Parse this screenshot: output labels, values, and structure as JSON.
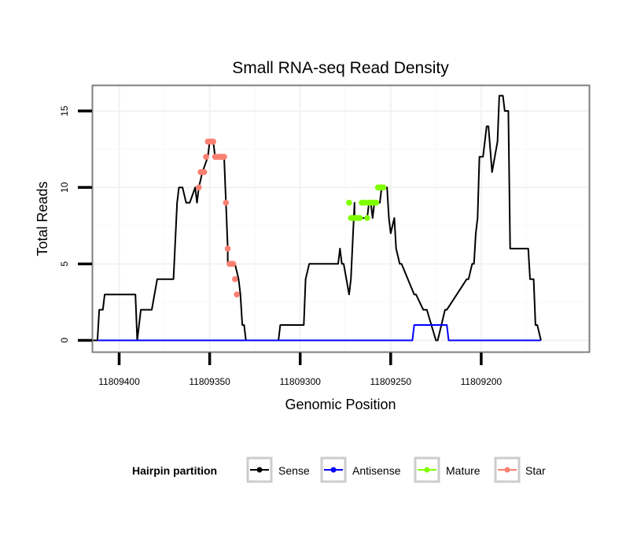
{
  "chart_data": {
    "type": "line",
    "title": "Small RNA-seq Read Density",
    "xlabel": "Genomic Position",
    "ylabel": "Total Reads",
    "x_reversed": true,
    "xlim": [
      11809415,
      11809140
    ],
    "ylim": [
      -0.8,
      16.7
    ],
    "x_ticks": [
      11809400,
      11809350,
      11809300,
      11809250,
      11809200
    ],
    "x_tick_labels": [
      "11809400",
      "11809350",
      "11809300",
      "11809250",
      "11809200"
    ],
    "y_ticks": [
      0,
      5,
      10,
      15
    ],
    "y_tick_labels": [
      "0",
      "5",
      "10",
      "15"
    ],
    "grid": true,
    "legend": {
      "title": "Hairpin partition",
      "position": "bottom",
      "entries": [
        {
          "name": "Sense",
          "color": "#000000"
        },
        {
          "name": "Antisense",
          "color": "#0000ff"
        },
        {
          "name": "Mature",
          "color": "#7fff00"
        },
        {
          "name": "Star",
          "color": "#fa8072"
        }
      ]
    },
    "series": [
      {
        "name": "Sense",
        "color": "#000000",
        "style": "line",
        "x": [
          11809415,
          11809412,
          11809411,
          11809409,
          11809408,
          11809391,
          11809390,
          11809389,
          11809388,
          11809382,
          11809379,
          11809370,
          11809368,
          11809367,
          11809365,
          11809363,
          11809361,
          11809358,
          11809357,
          11809356,
          11809354,
          11809351,
          11809350,
          11809348,
          11809347,
          11809342,
          11809341,
          11809340,
          11809340,
          11809336,
          11809334,
          11809333,
          11809332,
          11809331,
          11809330,
          11809312,
          11809311,
          11809298,
          11809297,
          11809295,
          11809279,
          11809278,
          11809277,
          11809276,
          11809273,
          11809272,
          11809270,
          11809270,
          11809263,
          11809262,
          11809261,
          11809260,
          11809259,
          11809256,
          11809255,
          11809252,
          11809251,
          11809250,
          11809248,
          11809247,
          11809245,
          11809244,
          11809237,
          11809236,
          11809232,
          11809230,
          11809225,
          11809224,
          11809220,
          11809219,
          11809208,
          11809207,
          11809205,
          11809204,
          11809203,
          11809202,
          11809201,
          11809199,
          11809197,
          11809196,
          11809194,
          11809191,
          11809190,
          11809188,
          11809187,
          11809185,
          11809184,
          11809174,
          11809173,
          11809171,
          11809170,
          11809169,
          11809167
        ],
        "y": [
          0,
          0,
          2,
          2,
          3,
          3,
          0,
          1,
          2,
          2,
          4,
          4,
          9,
          10,
          10,
          9,
          9,
          10,
          9,
          10,
          11,
          12,
          13,
          13,
          12,
          12,
          9,
          6,
          5,
          5,
          4,
          3,
          1,
          1,
          0,
          0,
          1,
          1,
          4,
          5,
          5,
          6,
          5,
          5,
          3,
          4,
          9,
          8,
          8,
          9,
          9,
          8,
          9,
          9,
          10,
          10,
          8,
          7,
          8,
          6,
          5,
          5,
          3,
          3,
          2,
          2,
          0,
          0,
          2,
          2,
          4,
          4,
          5,
          5,
          7,
          8,
          12,
          12,
          14,
          14,
          11,
          13,
          16,
          16,
          15,
          15,
          6,
          6,
          4,
          4,
          1,
          1,
          0
        ]
      },
      {
        "name": "Antisense",
        "color": "#0000ff",
        "style": "line",
        "x": [
          11809412,
          11809238,
          11809237,
          11809219,
          11809218,
          11809167
        ],
        "y": [
          0,
          0,
          1,
          1,
          0,
          0
        ]
      },
      {
        "name": "Mature",
        "color": "#7fff00",
        "style": "points",
        "x": [
          11809273,
          11809272,
          11809271,
          11809270,
          11809269,
          11809268,
          11809267,
          11809266,
          11809265,
          11809264,
          11809263,
          11809262,
          11809261,
          11809260,
          11809259,
          11809258,
          11809257,
          11809256,
          11809255,
          11809254
        ],
        "y": [
          9,
          8,
          8,
          8,
          8,
          8,
          8,
          9,
          9,
          9,
          8,
          9,
          9,
          9,
          9,
          9,
          10,
          10,
          10,
          10
        ]
      },
      {
        "name": "Star",
        "color": "#fa8072",
        "style": "points",
        "x": [
          11809356,
          11809355,
          11809354,
          11809353,
          11809352,
          11809351,
          11809350,
          11809349,
          11809348,
          11809347,
          11809346,
          11809345,
          11809344,
          11809343,
          11809342,
          11809341,
          11809340,
          11809339,
          11809338,
          11809337,
          11809336,
          11809335
        ],
        "y": [
          10,
          11,
          11,
          11,
          12,
          13,
          13,
          13,
          13,
          12,
          12,
          12,
          12,
          12,
          12,
          9,
          6,
          5,
          5,
          5,
          4,
          3
        ]
      }
    ]
  }
}
